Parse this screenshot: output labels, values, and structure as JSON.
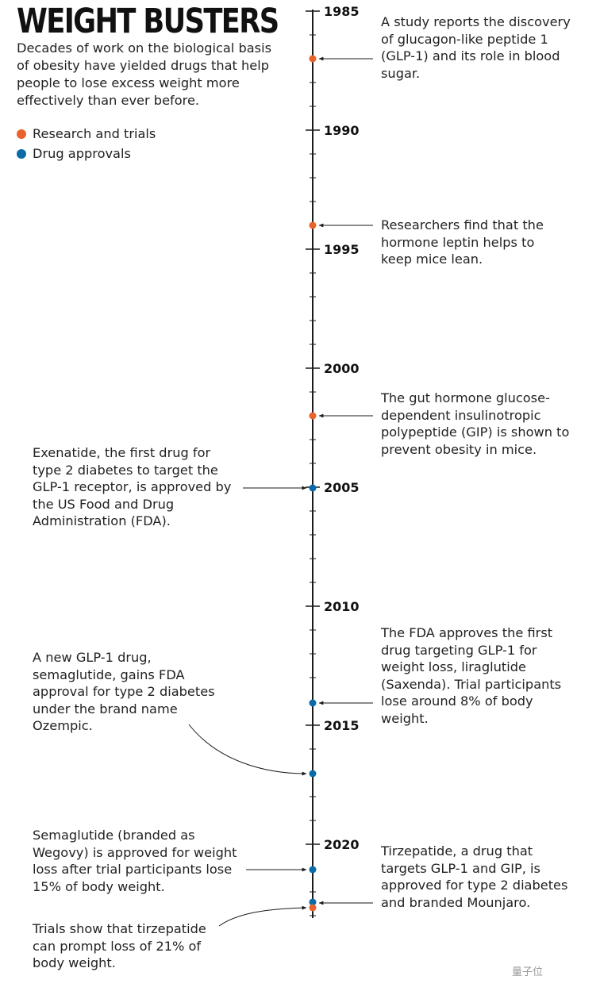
{
  "title": "WEIGHT BUSTERS",
  "subtitle": "Decades of work on the biological basis of obesity have yielded drugs that help people to lose excess weight more effectively than ever before.",
  "colors": {
    "research": "#e9622b",
    "approval": "#0b6aa8",
    "axis": "#1a1a1a"
  },
  "legend": [
    {
      "label": "Research and trials",
      "category": "research"
    },
    {
      "label": "Drug approvals",
      "category": "approval"
    }
  ],
  "timeline": {
    "start_year": 1985,
    "end_year": 2023,
    "labeled_years": [
      1985,
      1990,
      1995,
      2000,
      2005,
      2010,
      2015,
      2020
    ]
  },
  "events": [
    {
      "id": "glp1",
      "year": 1987,
      "category": "research",
      "side": "right",
      "text": "A study reports the discovery of glucagon-like peptide 1 (GLP-1) and its role in blood sugar."
    },
    {
      "id": "leptin",
      "year": 1994,
      "category": "research",
      "side": "right",
      "text": "Researchers find that the hormone leptin helps to keep mice lean."
    },
    {
      "id": "gip",
      "year": 2002,
      "category": "research",
      "side": "right",
      "text": "The gut hormone glucose-dependent insulinotropic polypeptide (GIP) is shown to prevent obesity in mice."
    },
    {
      "id": "exenatide",
      "year": 2005,
      "category": "approval",
      "side": "left",
      "text": "Exenatide, the first drug for type 2 diabetes to target the GLP-1 receptor, is approved by the US Food and Drug Administration (FDA)."
    },
    {
      "id": "saxenda",
      "year": 2014,
      "category": "approval",
      "side": "right",
      "text": "The FDA approves the first drug targeting GLP-1 for weight loss, liraglutide (Saxenda). Trial participants lose around 8% of body weight."
    },
    {
      "id": "ozempic",
      "year": 2017,
      "category": "approval",
      "side": "left",
      "text": "A new GLP-1 drug, semaglutide, gains FDA approval for type 2 diabetes under the brand name Ozempic."
    },
    {
      "id": "wegovy",
      "year": 2021,
      "category": "approval",
      "side": "left",
      "text": "Semaglutide (branded as Wegovy) is approved for weight loss after trial participants lose 15% of body weight."
    },
    {
      "id": "mounjaro",
      "year": 2022,
      "category": "approval",
      "side": "right",
      "text": "Tirzepatide, a drug that targets GLP-1 and GIP, is approved for type 2 diabetes and branded Mounjaro."
    },
    {
      "id": "tirzepatide-trials",
      "year": 2022,
      "category": "research",
      "side": "left",
      "text": "Trials show that tirzepatide can prompt loss of 21% of body weight."
    }
  ],
  "watermark": "量子位"
}
